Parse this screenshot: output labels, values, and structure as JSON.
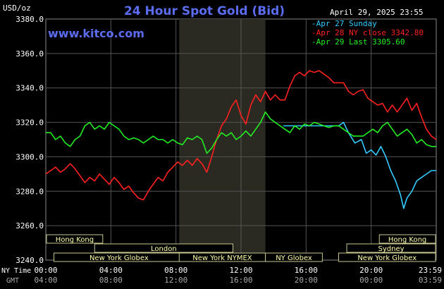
{
  "title": "24 Hour Spot Gold (Bid)",
  "brand": "www.kitco.com",
  "units": "USD/oz",
  "datetime": "April 29, 2025 23:55",
  "legend": [
    {
      "text": "-Apr 27 Sunday",
      "color": "#33ccff"
    },
    {
      "text": "-Apr 28 NY close 3342.80",
      "color": "#ff2020"
    },
    {
      "text": "-Apr 29 Last 3305.60",
      "color": "#22ee22"
    }
  ],
  "time_row_labels": {
    "ny": "NY Time",
    "gmt": "GMT"
  },
  "x_ticks_ny": [
    "00:00",
    "04:00",
    "08:00",
    "12:00",
    "16:00",
    "20:00",
    "23:59"
  ],
  "x_ticks_gmt": [
    "04:00",
    "08:00",
    "12:00",
    "16:00",
    "20:00",
    "00:00",
    "03:59"
  ],
  "sessions": [
    {
      "label": "Hong Kong",
      "start": 0,
      "end": 3.5,
      "row": 0
    },
    {
      "label": "London",
      "start": 3.0,
      "end": 11.5,
      "row": 1
    },
    {
      "label": "New York Globex",
      "start": 0.5,
      "end": 8.5,
      "row": 2
    },
    {
      "label": "New York NYMEX",
      "start": 8.2,
      "end": 13.5,
      "row": 2
    },
    {
      "label": "NY Globex",
      "start": 13.5,
      "end": 17.0,
      "row": 2
    },
    {
      "label": "Hong Kong",
      "start": 20.5,
      "end": 24,
      "row": 0
    },
    {
      "label": "Sydney",
      "start": 18.5,
      "end": 24,
      "row": 1
    },
    {
      "label": "New York Globex",
      "start": 18.0,
      "end": 24,
      "row": 2
    }
  ],
  "colors": {
    "sunday": "#33ccff",
    "monday": "#ff2020",
    "tuesday": "#22ee22",
    "session_text": "#ffffaa",
    "highlight": "#2a2a22"
  },
  "chart_data": {
    "type": "line",
    "title": "24 Hour Spot Gold (Bid)",
    "ylabel": "USD/oz",
    "xlabel": "",
    "x_unit": "hours (NY time)",
    "xlim": [
      0,
      24
    ],
    "ylim": [
      3240,
      3380
    ],
    "yticks": [
      3240,
      3260,
      3280,
      3300,
      3320,
      3340,
      3360,
      3380
    ],
    "grid": true,
    "legend_position": "top-right",
    "series": [
      {
        "name": "Apr 27 Sunday",
        "color": "#33ccff",
        "points": [
          [
            14.6,
            3318
          ],
          [
            16.5,
            3318
          ],
          [
            18.0,
            3318
          ],
          [
            18.3,
            3320
          ],
          [
            18.6,
            3314
          ],
          [
            19.0,
            3308
          ],
          [
            19.4,
            3310
          ],
          [
            19.7,
            3302
          ],
          [
            20.0,
            3304
          ],
          [
            20.3,
            3301
          ],
          [
            20.6,
            3306
          ],
          [
            20.9,
            3300
          ],
          [
            21.2,
            3292
          ],
          [
            21.5,
            3286
          ],
          [
            21.8,
            3278
          ],
          [
            22.0,
            3270
          ],
          [
            22.2,
            3276
          ],
          [
            22.5,
            3280
          ],
          [
            22.8,
            3286
          ],
          [
            23.1,
            3288
          ],
          [
            23.4,
            3290
          ],
          [
            23.7,
            3292
          ],
          [
            24.0,
            3292
          ]
        ]
      },
      {
        "name": "Apr 28 NY close 3342.80",
        "color": "#ff2020",
        "points": [
          [
            0,
            3290
          ],
          [
            0.3,
            3292
          ],
          [
            0.6,
            3294
          ],
          [
            0.9,
            3291
          ],
          [
            1.2,
            3293
          ],
          [
            1.5,
            3296
          ],
          [
            1.8,
            3293
          ],
          [
            2.1,
            3289
          ],
          [
            2.4,
            3285
          ],
          [
            2.7,
            3288
          ],
          [
            3.0,
            3286
          ],
          [
            3.3,
            3290
          ],
          [
            3.6,
            3287
          ],
          [
            3.9,
            3284
          ],
          [
            4.2,
            3288
          ],
          [
            4.5,
            3285
          ],
          [
            4.8,
            3281
          ],
          [
            5.1,
            3283
          ],
          [
            5.4,
            3279
          ],
          [
            5.7,
            3276
          ],
          [
            6.0,
            3275
          ],
          [
            6.3,
            3280
          ],
          [
            6.6,
            3284
          ],
          [
            6.9,
            3288
          ],
          [
            7.2,
            3286
          ],
          [
            7.5,
            3291
          ],
          [
            7.8,
            3294
          ],
          [
            8.1,
            3297
          ],
          [
            8.4,
            3295
          ],
          [
            8.7,
            3298
          ],
          [
            9.0,
            3295
          ],
          [
            9.3,
            3299
          ],
          [
            9.6,
            3296
          ],
          [
            9.9,
            3291
          ],
          [
            10.2,
            3300
          ],
          [
            10.5,
            3310
          ],
          [
            10.8,
            3318
          ],
          [
            11.1,
            3322
          ],
          [
            11.4,
            3329
          ],
          [
            11.7,
            3333
          ],
          [
            12.0,
            3324
          ],
          [
            12.3,
            3319
          ],
          [
            12.6,
            3330
          ],
          [
            12.9,
            3336
          ],
          [
            13.2,
            3332
          ],
          [
            13.5,
            3338
          ],
          [
            13.8,
            3333
          ],
          [
            14.1,
            3336
          ],
          [
            14.4,
            3333
          ],
          [
            14.7,
            3333
          ],
          [
            15.0,
            3341
          ],
          [
            15.3,
            3347
          ],
          [
            15.6,
            3349
          ],
          [
            15.9,
            3347
          ],
          [
            16.2,
            3350
          ],
          [
            16.5,
            3349
          ],
          [
            16.8,
            3350
          ],
          [
            17.1,
            3348
          ],
          [
            17.4,
            3346
          ],
          [
            17.7,
            3343
          ],
          [
            18.0,
            3343
          ],
          [
            18.3,
            3343
          ],
          [
            18.6,
            3338
          ],
          [
            18.9,
            3336
          ],
          [
            19.2,
            3338
          ],
          [
            19.5,
            3339
          ],
          [
            19.8,
            3334
          ],
          [
            20.1,
            3332
          ],
          [
            20.4,
            3330
          ],
          [
            20.7,
            3331
          ],
          [
            21.0,
            3326
          ],
          [
            21.3,
            3330
          ],
          [
            21.6,
            3326
          ],
          [
            21.9,
            3330
          ],
          [
            22.2,
            3334
          ],
          [
            22.5,
            3327
          ],
          [
            22.8,
            3331
          ],
          [
            23.1,
            3323
          ],
          [
            23.4,
            3316
          ],
          [
            23.7,
            3312
          ],
          [
            24.0,
            3310
          ]
        ]
      },
      {
        "name": "Apr 29 Last 3305.60",
        "color": "#22ee22",
        "points": [
          [
            0,
            3314
          ],
          [
            0.3,
            3314
          ],
          [
            0.6,
            3310
          ],
          [
            0.9,
            3312
          ],
          [
            1.2,
            3308
          ],
          [
            1.5,
            3306
          ],
          [
            1.8,
            3310
          ],
          [
            2.1,
            3312
          ],
          [
            2.4,
            3318
          ],
          [
            2.7,
            3320
          ],
          [
            3.0,
            3316
          ],
          [
            3.3,
            3318
          ],
          [
            3.6,
            3316
          ],
          [
            3.9,
            3320
          ],
          [
            4.2,
            3318
          ],
          [
            4.5,
            3316
          ],
          [
            4.8,
            3312
          ],
          [
            5.1,
            3310
          ],
          [
            5.4,
            3311
          ],
          [
            5.7,
            3310
          ],
          [
            6.0,
            3308
          ],
          [
            6.3,
            3310
          ],
          [
            6.6,
            3312
          ],
          [
            6.9,
            3310
          ],
          [
            7.2,
            3310
          ],
          [
            7.5,
            3308
          ],
          [
            7.8,
            3310
          ],
          [
            8.1,
            3308
          ],
          [
            8.4,
            3307
          ],
          [
            8.7,
            3311
          ],
          [
            9.0,
            3310
          ],
          [
            9.3,
            3312
          ],
          [
            9.6,
            3310
          ],
          [
            9.9,
            3302
          ],
          [
            10.2,
            3305
          ],
          [
            10.5,
            3310
          ],
          [
            10.8,
            3314
          ],
          [
            11.1,
            3312
          ],
          [
            11.4,
            3314
          ],
          [
            11.7,
            3310
          ],
          [
            12.0,
            3312
          ],
          [
            12.3,
            3315
          ],
          [
            12.6,
            3312
          ],
          [
            12.9,
            3316
          ],
          [
            13.2,
            3320
          ],
          [
            13.5,
            3326
          ],
          [
            13.8,
            3322
          ],
          [
            14.1,
            3320
          ],
          [
            14.4,
            3318
          ],
          [
            14.7,
            3316
          ],
          [
            15.0,
            3314
          ],
          [
            15.3,
            3318
          ],
          [
            15.6,
            3316
          ],
          [
            15.9,
            3319
          ],
          [
            16.2,
            3318
          ],
          [
            16.5,
            3320
          ],
          [
            16.8,
            3319
          ],
          [
            17.1,
            3318
          ],
          [
            17.4,
            3317
          ],
          [
            17.7,
            3318
          ],
          [
            18.0,
            3318
          ],
          [
            18.3,
            3316
          ],
          [
            18.6,
            3314
          ],
          [
            18.9,
            3312
          ],
          [
            19.2,
            3312
          ],
          [
            19.5,
            3312
          ],
          [
            19.8,
            3314
          ],
          [
            20.1,
            3316
          ],
          [
            20.4,
            3314
          ],
          [
            20.7,
            3318
          ],
          [
            21.0,
            3320
          ],
          [
            21.3,
            3316
          ],
          [
            21.6,
            3312
          ],
          [
            21.9,
            3314
          ],
          [
            22.2,
            3316
          ],
          [
            22.5,
            3313
          ],
          [
            22.8,
            3308
          ],
          [
            23.1,
            3310
          ],
          [
            23.4,
            3307
          ],
          [
            23.7,
            3306
          ],
          [
            24.0,
            3306
          ]
        ]
      }
    ]
  }
}
